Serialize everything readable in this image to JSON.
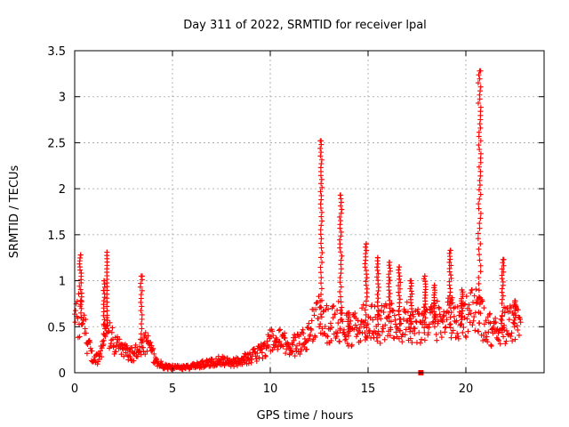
{
  "chart_data": {
    "type": "scatter",
    "title": "Day 311 of 2022, SRMTID for receiver lpal",
    "xlabel": "GPS time / hours",
    "ylabel": "SRMTID / TECUs",
    "xlim": [
      0,
      24
    ],
    "ylim": [
      0,
      3.5
    ],
    "x_ticks": [
      0,
      5,
      10,
      15,
      20
    ],
    "y_ticks": [
      0,
      0.5,
      1,
      1.5,
      2,
      2.5,
      3,
      3.5
    ],
    "x_tick_labels": [
      "0",
      "5",
      "10",
      "15",
      "20"
    ],
    "y_tick_labels": [
      "0",
      "0.5",
      "1",
      "1.5",
      "2",
      "2.5",
      "3",
      "3.5"
    ],
    "grid": true,
    "marker": "+",
    "color": "#ff0000",
    "trend": [
      [
        0.0,
        0.45
      ],
      [
        0.2,
        0.55
      ],
      [
        0.4,
        0.5
      ],
      [
        0.7,
        0.25
      ],
      [
        1.0,
        0.12
      ],
      [
        1.3,
        0.15
      ],
      [
        1.6,
        0.45
      ],
      [
        2.0,
        0.3
      ],
      [
        2.5,
        0.2
      ],
      [
        3.0,
        0.18
      ],
      [
        3.5,
        0.3
      ],
      [
        3.8,
        0.25
      ],
      [
        4.2,
        0.1
      ],
      [
        4.6,
        0.06
      ],
      [
        5.0,
        0.05
      ],
      [
        5.5,
        0.05
      ],
      [
        6.0,
        0.06
      ],
      [
        6.5,
        0.08
      ],
      [
        7.0,
        0.1
      ],
      [
        7.5,
        0.12
      ],
      [
        8.0,
        0.09
      ],
      [
        8.5,
        0.12
      ],
      [
        9.0,
        0.15
      ],
      [
        9.5,
        0.2
      ],
      [
        10.0,
        0.3
      ],
      [
        10.5,
        0.3
      ],
      [
        11.0,
        0.25
      ],
      [
        11.5,
        0.28
      ],
      [
        12.0,
        0.4
      ],
      [
        12.5,
        0.55
      ],
      [
        13.0,
        0.45
      ],
      [
        13.5,
        0.5
      ],
      [
        14.0,
        0.4
      ],
      [
        14.5,
        0.45
      ],
      [
        15.0,
        0.5
      ],
      [
        15.5,
        0.45
      ],
      [
        16.0,
        0.5
      ],
      [
        16.5,
        0.45
      ],
      [
        17.0,
        0.5
      ],
      [
        17.5,
        0.45
      ],
      [
        18.0,
        0.5
      ],
      [
        18.5,
        0.5
      ],
      [
        19.0,
        0.55
      ],
      [
        19.5,
        0.5
      ],
      [
        20.0,
        0.55
      ],
      [
        20.5,
        0.6
      ],
      [
        21.0,
        0.45
      ],
      [
        21.5,
        0.4
      ],
      [
        22.0,
        0.45
      ],
      [
        22.5,
        0.5
      ],
      [
        22.8,
        0.4
      ]
    ],
    "spikes": [
      {
        "x": 0.3,
        "peak": 1.28,
        "width": 0.12
      },
      {
        "x": 1.5,
        "peak": 1.0,
        "width": 0.1
      },
      {
        "x": 1.65,
        "peak": 1.31,
        "width": 0.02
      },
      {
        "x": 3.4,
        "peak": 1.05,
        "width": 0.12
      },
      {
        "x": 12.6,
        "peak": 2.52,
        "width": 0.1
      },
      {
        "x": 13.6,
        "peak": 1.93,
        "width": 0.12
      },
      {
        "x": 14.0,
        "peak": 0.65,
        "width": 0.1
      },
      {
        "x": 14.9,
        "peak": 1.4,
        "width": 0.12
      },
      {
        "x": 15.5,
        "peak": 1.25,
        "width": 0.1
      },
      {
        "x": 16.1,
        "peak": 1.2,
        "width": 0.1
      },
      {
        "x": 16.6,
        "peak": 1.15,
        "width": 0.1
      },
      {
        "x": 17.2,
        "peak": 1.0,
        "width": 0.1
      },
      {
        "x": 17.9,
        "peak": 1.05,
        "width": 0.1
      },
      {
        "x": 18.4,
        "peak": 0.95,
        "width": 0.1
      },
      {
        "x": 19.2,
        "peak": 1.33,
        "width": 0.12
      },
      {
        "x": 19.8,
        "peak": 0.9,
        "width": 0.1
      },
      {
        "x": 20.7,
        "peak": 3.28,
        "width": 0.14
      },
      {
        "x": 21.9,
        "peak": 1.23,
        "width": 0.12
      },
      {
        "x": 22.5,
        "peak": 0.78,
        "width": 0.1
      }
    ],
    "outliers": [
      {
        "x": 17.7,
        "y": 0.0
      }
    ],
    "approx_point_count": 900
  }
}
